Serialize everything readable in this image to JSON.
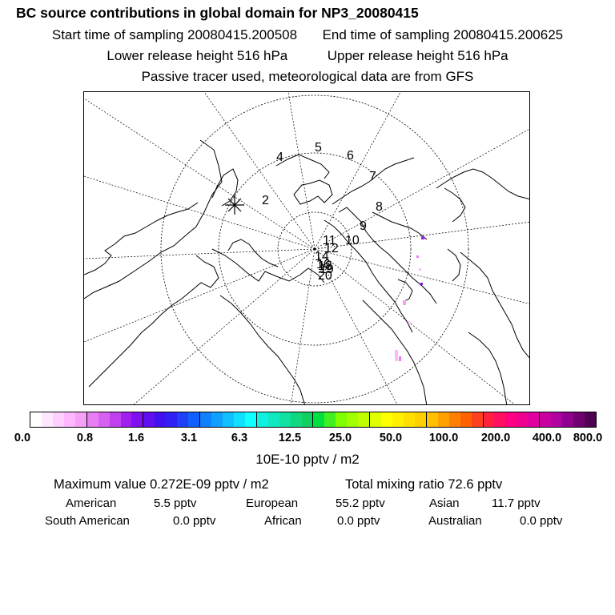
{
  "header": {
    "title": "BC  source contributions in global domain for NP3_20080415",
    "start_time": "Start time of sampling 20080415.200508",
    "end_time": "End time of sampling 20080415.200625",
    "lower_height": "Lower release height  516 hPa",
    "upper_height": "Upper release height  516 hPa",
    "note": "Passive tracer used, meteorological data are from GFS"
  },
  "map": {
    "trajectory_labels": [
      "2",
      "4",
      "5",
      "6",
      "7",
      "8",
      "9",
      "10",
      "11",
      "12",
      "14",
      "16",
      "18",
      "19",
      "20"
    ]
  },
  "colorbar": {
    "colors": [
      "#ffffff",
      "#ffe8ff",
      "#ffd0ff",
      "#ffb8ff",
      "#f7a0f7",
      "#e87ef4",
      "#d860f0",
      "#c040f0",
      "#a020f0",
      "#8010f0",
      "#6010f0",
      "#4010f0",
      "#3020f4",
      "#2040f8",
      "#1060ff",
      "#1080ff",
      "#10a0ff",
      "#10c0ff",
      "#10e0ff",
      "#10ffff",
      "#10f0e0",
      "#10e8c0",
      "#10e0a0",
      "#10d880",
      "#10d060",
      "#00e040",
      "#40f020",
      "#80ff00",
      "#a0ff00",
      "#c0ff00",
      "#e0ff00",
      "#ffff00",
      "#fff000",
      "#ffe000",
      "#ffd000",
      "#ffc000",
      "#ffa000",
      "#ff8000",
      "#ff6000",
      "#ff4020",
      "#ff2040",
      "#ff1060",
      "#ff0080",
      "#f00090",
      "#e000a0",
      "#c800a0",
      "#b000a0",
      "#900090",
      "#700070",
      "#500050"
    ],
    "ticks": [
      "0.0",
      "0.8",
      "1.6",
      "3.1",
      "6.3",
      "12.5",
      "25.0",
      "50.0",
      "100.0",
      "200.0",
      "400.0",
      "800.0"
    ],
    "units": "10E-10 pptv / m2"
  },
  "stats": {
    "max_value": "Maximum value  0.272E-09 pptv / m2",
    "total": "Total mixing ratio       72.6 pptv",
    "sources": [
      {
        "name": "American",
        "value": "5.5 pptv"
      },
      {
        "name": "European",
        "value": "55.2 pptv"
      },
      {
        "name": "Asian",
        "value": "11.7 pptv"
      },
      {
        "name": "South American",
        "value": "0.0 pptv"
      },
      {
        "name": "African",
        "value": "0.0 pptv"
      },
      {
        "name": "Australian",
        "value": "0.0 pptv"
      }
    ]
  }
}
